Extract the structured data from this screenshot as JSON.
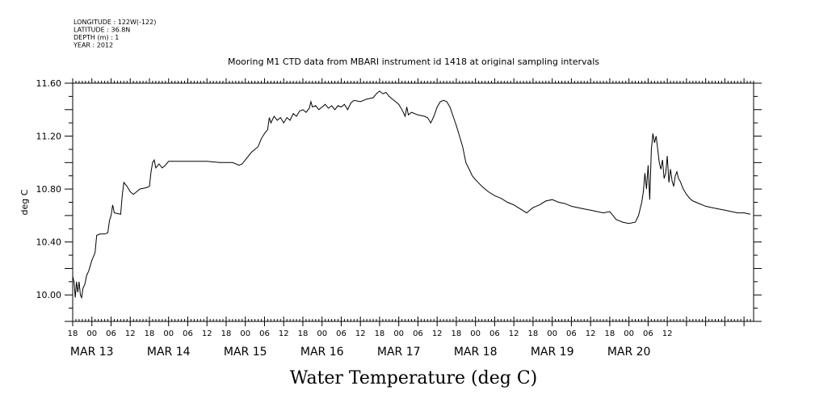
{
  "header": {
    "lines": [
      "LONGITUDE : 122W(-122)",
      "LATITUDE : 36.8N",
      "DEPTH (m) : 1",
      "YEAR : 2012"
    ]
  },
  "chart_data": {
    "type": "line",
    "title": "Mooring M1 CTD data from MBARI instrument id 1418 at original sampling intervals",
    "xlabel": "Water Temperature (deg C)",
    "ylabel": "deg C",
    "ylim": [
      9.8,
      11.6
    ],
    "yticks": [
      "10.00",
      "10.40",
      "10.80",
      "11.20",
      "11.60"
    ],
    "hour_ticks": [
      "18",
      "00",
      "06",
      "12",
      "18",
      "00",
      "06",
      "12",
      "18",
      "00",
      "06",
      "12",
      "18",
      "00",
      "06",
      "12",
      "18",
      "00",
      "06",
      "12",
      "18",
      "00",
      "06",
      "12",
      "18",
      "00",
      "06",
      "12",
      "18",
      "00",
      "06",
      "12"
    ],
    "day_labels": [
      "MAR 13",
      "MAR 14",
      "MAR 15",
      "MAR 16",
      "MAR 17",
      "MAR 18",
      "MAR 19",
      "MAR 20"
    ],
    "x_unit": "hours since MAR 13 00:00",
    "series": [
      {
        "values": [
          [
            -6,
            10.14
          ],
          [
            -5.6,
            10.1
          ],
          [
            -5.2,
            9.98
          ],
          [
            -4.8,
            10.1
          ],
          [
            -4.4,
            10.02
          ],
          [
            -4.0,
            10.1
          ],
          [
            -3.6,
            10.0
          ],
          [
            -3.2,
            9.98
          ],
          [
            -2.8,
            10.05
          ],
          [
            -2.2,
            10.08
          ],
          [
            -1.6,
            10.15
          ],
          [
            -1,
            10.18
          ],
          [
            0,
            10.26
          ],
          [
            1,
            10.32
          ],
          [
            1.5,
            10.45
          ],
          [
            2.5,
            10.46
          ],
          [
            4,
            10.46
          ],
          [
            5,
            10.47
          ],
          [
            5.5,
            10.56
          ],
          [
            6,
            10.6
          ],
          [
            6.5,
            10.68
          ],
          [
            7,
            10.62
          ],
          [
            9,
            10.61
          ],
          [
            9.5,
            10.75
          ],
          [
            10,
            10.85
          ],
          [
            11,
            10.82
          ],
          [
            12,
            10.78
          ],
          [
            13,
            10.76
          ],
          [
            14,
            10.78
          ],
          [
            15,
            10.8
          ],
          [
            17,
            10.81
          ],
          [
            18,
            10.82
          ],
          [
            18.5,
            10.93
          ],
          [
            19,
            11.0
          ],
          [
            19.5,
            11.02
          ],
          [
            20,
            10.96
          ],
          [
            21,
            10.99
          ],
          [
            22,
            10.96
          ],
          [
            23,
            10.98
          ],
          [
            24,
            11.01
          ],
          [
            30,
            11.01
          ],
          [
            36,
            11.01
          ],
          [
            40,
            11.0
          ],
          [
            42,
            11.0
          ],
          [
            44,
            11.0
          ],
          [
            46,
            10.98
          ],
          [
            47,
            10.99
          ],
          [
            48,
            11.02
          ],
          [
            49,
            11.05
          ],
          [
            50,
            11.08
          ],
          [
            52,
            11.12
          ],
          [
            53,
            11.18
          ],
          [
            54,
            11.22
          ],
          [
            55,
            11.25
          ],
          [
            55.5,
            11.34
          ],
          [
            56,
            11.3
          ],
          [
            57,
            11.35
          ],
          [
            58,
            11.32
          ],
          [
            59,
            11.34
          ],
          [
            60,
            11.3
          ],
          [
            61,
            11.34
          ],
          [
            62,
            11.32
          ],
          [
            63,
            11.37
          ],
          [
            64,
            11.35
          ],
          [
            65,
            11.39
          ],
          [
            66,
            11.4
          ],
          [
            67,
            11.38
          ],
          [
            68,
            11.41
          ],
          [
            68.5,
            11.46
          ],
          [
            69,
            11.42
          ],
          [
            70,
            11.43
          ],
          [
            71,
            11.4
          ],
          [
            72,
            11.42
          ],
          [
            73,
            11.44
          ],
          [
            74,
            11.41
          ],
          [
            75,
            11.43
          ],
          [
            76,
            11.4
          ],
          [
            77,
            11.43
          ],
          [
            78,
            11.42
          ],
          [
            79,
            11.44
          ],
          [
            80,
            11.4
          ],
          [
            81,
            11.45
          ],
          [
            82,
            11.47
          ],
          [
            84,
            11.46
          ],
          [
            86,
            11.48
          ],
          [
            88,
            11.49
          ],
          [
            89,
            11.52
          ],
          [
            90,
            11.54
          ],
          [
            91,
            11.52
          ],
          [
            92,
            11.53
          ],
          [
            93,
            11.5
          ],
          [
            94,
            11.48
          ],
          [
            95,
            11.46
          ],
          [
            96,
            11.44
          ],
          [
            97,
            11.4
          ],
          [
            98,
            11.35
          ],
          [
            98.5,
            11.42
          ],
          [
            99,
            11.36
          ],
          [
            100,
            11.38
          ],
          [
            102,
            11.36
          ],
          [
            104,
            11.35
          ],
          [
            105,
            11.34
          ],
          [
            106,
            11.3
          ],
          [
            107,
            11.35
          ],
          [
            108,
            11.42
          ],
          [
            109,
            11.46
          ],
          [
            110,
            11.47
          ],
          [
            111,
            11.46
          ],
          [
            112,
            11.42
          ],
          [
            113,
            11.35
          ],
          [
            114,
            11.28
          ],
          [
            115,
            11.2
          ],
          [
            116,
            11.12
          ],
          [
            117,
            11.0
          ],
          [
            118,
            10.95
          ],
          [
            119,
            10.9
          ],
          [
            120,
            10.87
          ],
          [
            122,
            10.82
          ],
          [
            124,
            10.78
          ],
          [
            126,
            10.75
          ],
          [
            128,
            10.73
          ],
          [
            130,
            10.7
          ],
          [
            132,
            10.68
          ],
          [
            134,
            10.65
          ],
          [
            136,
            10.62
          ],
          [
            137,
            10.64
          ],
          [
            138,
            10.66
          ],
          [
            140,
            10.68
          ],
          [
            142,
            10.71
          ],
          [
            144,
            10.72
          ],
          [
            146,
            10.7
          ],
          [
            148,
            10.69
          ],
          [
            150,
            10.67
          ],
          [
            152,
            10.66
          ],
          [
            154,
            10.65
          ],
          [
            156,
            10.64
          ],
          [
            158,
            10.63
          ],
          [
            160,
            10.62
          ],
          [
            162,
            10.63
          ],
          [
            163,
            10.6
          ],
          [
            164,
            10.57
          ],
          [
            165,
            10.56
          ],
          [
            166,
            10.55
          ],
          [
            168,
            10.54
          ],
          [
            170,
            10.55
          ],
          [
            171,
            10.6
          ],
          [
            172,
            10.7
          ],
          [
            172.5,
            10.78
          ],
          [
            173,
            10.92
          ],
          [
            173.5,
            10.8
          ],
          [
            174,
            10.98
          ],
          [
            174.5,
            10.72
          ],
          [
            175,
            11.1
          ],
          [
            175.5,
            11.22
          ],
          [
            176,
            11.15
          ],
          [
            176.5,
            11.2
          ],
          [
            177,
            11.1
          ],
          [
            177.5,
            11.0
          ],
          [
            178,
            10.95
          ],
          [
            178.5,
            11.02
          ],
          [
            179,
            10.88
          ],
          [
            179.5,
            10.92
          ],
          [
            180,
            11.05
          ],
          [
            180.5,
            10.85
          ],
          [
            181,
            10.95
          ],
          [
            181.5,
            10.86
          ],
          [
            182,
            10.82
          ],
          [
            182.5,
            10.9
          ],
          [
            183,
            10.93
          ],
          [
            183.5,
            10.88
          ],
          [
            184,
            10.86
          ],
          [
            185,
            10.8
          ],
          [
            186,
            10.76
          ],
          [
            187,
            10.73
          ],
          [
            188,
            10.71
          ],
          [
            190,
            10.69
          ],
          [
            192,
            10.67
          ],
          [
            194,
            10.66
          ],
          [
            196,
            10.65
          ],
          [
            198,
            10.64
          ],
          [
            200,
            10.63
          ],
          [
            202,
            10.62
          ],
          [
            204,
            10.62
          ],
          [
            206,
            10.61
          ]
        ]
      }
    ]
  }
}
